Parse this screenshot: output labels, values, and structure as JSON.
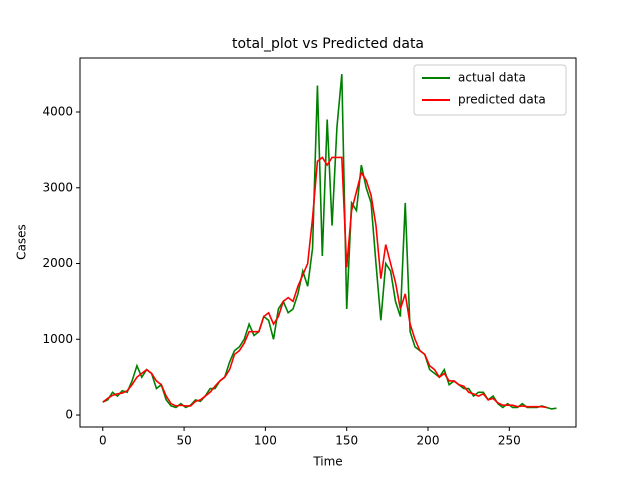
{
  "chart_data": {
    "type": "line",
    "title": "total_plot vs Predicted data",
    "xlabel": "Time",
    "ylabel": "Cases",
    "x": [
      0,
      3,
      6,
      9,
      12,
      15,
      18,
      21,
      24,
      27,
      30,
      33,
      36,
      39,
      42,
      45,
      48,
      51,
      54,
      57,
      60,
      63,
      66,
      69,
      72,
      75,
      78,
      81,
      84,
      87,
      90,
      93,
      96,
      99,
      102,
      105,
      108,
      111,
      114,
      117,
      120,
      123,
      126,
      129,
      132,
      135,
      138,
      141,
      144,
      147,
      150,
      153,
      156,
      159,
      162,
      165,
      168,
      171,
      174,
      177,
      180,
      183,
      186,
      189,
      192,
      195,
      198,
      201,
      204,
      207,
      210,
      213,
      216,
      219,
      222,
      225,
      228,
      231,
      234,
      237,
      240,
      243,
      246,
      249,
      252,
      255,
      258,
      261,
      264,
      267,
      270,
      273,
      276,
      279
    ],
    "series": [
      {
        "name": "actual data",
        "color": "#008000",
        "values": [
          170,
          200,
          300,
          250,
          320,
          300,
          450,
          650,
          500,
          600,
          550,
          350,
          400,
          200,
          120,
          100,
          150,
          100,
          130,
          200,
          180,
          250,
          350,
          350,
          450,
          500,
          700,
          850,
          900,
          1000,
          1200,
          1050,
          1100,
          1300,
          1250,
          1000,
          1400,
          1500,
          1350,
          1400,
          1600,
          1900,
          1700,
          2200,
          4350,
          2100,
          3900,
          2500,
          3800,
          4500,
          1400,
          2800,
          2700,
          3300,
          3000,
          2800,
          2000,
          1250,
          2000,
          1900,
          1500,
          1300,
          2800,
          1100,
          900,
          850,
          800,
          600,
          550,
          500,
          600,
          400,
          450,
          400,
          350,
          350,
          250,
          300,
          300,
          200,
          250,
          150,
          100,
          150,
          100,
          100,
          150,
          100,
          100,
          100,
          120,
          100,
          80,
          90
        ]
      },
      {
        "name": "predicted data",
        "color": "#ff0000",
        "values": [
          170,
          220,
          260,
          280,
          290,
          320,
          400,
          500,
          550,
          600,
          550,
          450,
          400,
          250,
          150,
          120,
          130,
          120,
          120,
          180,
          200,
          250,
          300,
          380,
          450,
          500,
          600,
          800,
          850,
          950,
          1100,
          1100,
          1100,
          1300,
          1350,
          1200,
          1300,
          1500,
          1550,
          1500,
          1700,
          1850,
          2000,
          2600,
          3350,
          3400,
          3300,
          3400,
          3400,
          3400,
          1950,
          2700,
          2950,
          3200,
          3100,
          2900,
          2500,
          1800,
          2250,
          2000,
          1750,
          1400,
          1600,
          1200,
          1000,
          850,
          800,
          650,
          600,
          500,
          550,
          450,
          450,
          400,
          380,
          300,
          280,
          250,
          280,
          200,
          220,
          160,
          130,
          130,
          130,
          110,
          120,
          110,
          110,
          110,
          110,
          100,
          null,
          null
        ]
      }
    ],
    "xlim": [
      -14,
      291
    ],
    "ylim": [
      -158,
      4713
    ],
    "xticks": [
      0,
      50,
      100,
      150,
      200,
      250
    ],
    "yticks": [
      0,
      1000,
      2000,
      3000,
      4000
    ],
    "legend": "upper right"
  }
}
